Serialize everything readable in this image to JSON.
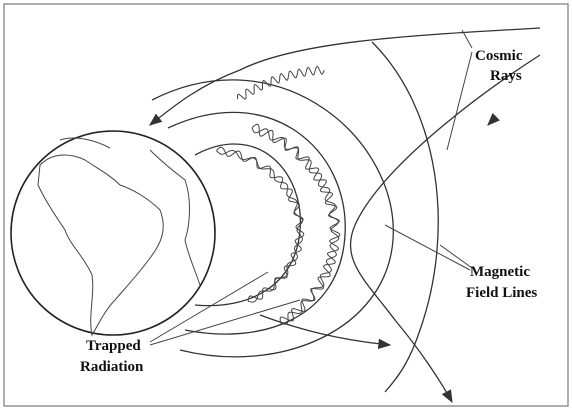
{
  "labels": [
    {
      "lines": [
        "Cosmic",
        "Rays"
      ]
    },
    {
      "lines": [
        "Magnetic",
        "Field Lines"
      ]
    },
    {
      "lines": [
        "Trapped",
        "Radiation"
      ]
    }
  ]
}
